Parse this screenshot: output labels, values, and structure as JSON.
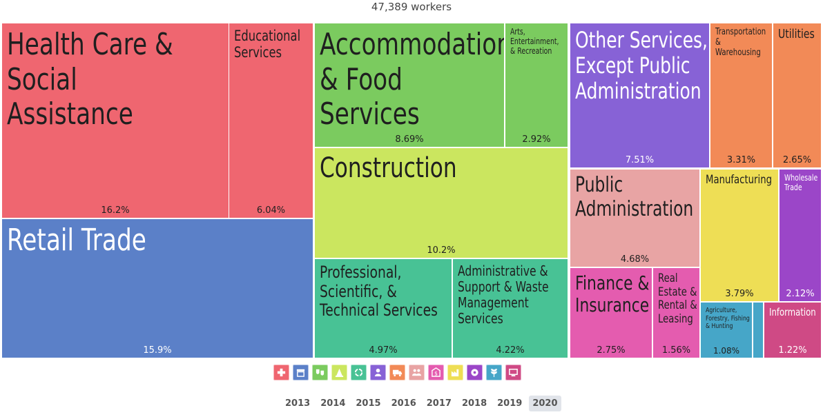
{
  "subtitle": "47,389 workers",
  "chart_data": {
    "type": "treemap",
    "total_label": "47,389 workers",
    "items": [
      {
        "name": "Health Care & Social Assistance",
        "value": 16.2,
        "label": "16.2%",
        "color": "#ef6670"
      },
      {
        "name": "Educational Services",
        "value": 6.04,
        "label": "6.04%",
        "color": "#ef6670"
      },
      {
        "name": "Retail Trade",
        "value": 15.9,
        "label": "15.9%",
        "color": "#5b80c8"
      },
      {
        "name": "Accommodation & Food Services",
        "value": 8.69,
        "label": "8.69%",
        "color": "#7bcb5f"
      },
      {
        "name": "Arts, Entertainment, & Recreation",
        "value": 2.92,
        "label": "2.92%",
        "color": "#7bcb5f"
      },
      {
        "name": "Construction",
        "value": 10.2,
        "label": "10.2%",
        "color": "#cbe65f"
      },
      {
        "name": "Professional, Scientific, & Technical Services",
        "value": 4.97,
        "label": "4.97%",
        "color": "#48c295"
      },
      {
        "name": "Administrative & Support & Waste Management Services",
        "value": 4.22,
        "label": "4.22%",
        "color": "#48c295"
      },
      {
        "name": "Other Services, Except Public Administration",
        "value": 7.51,
        "label": "7.51%",
        "color": "#8762d6"
      },
      {
        "name": "Transportation & Warehousing",
        "value": 3.31,
        "label": "3.31%",
        "color": "#f28a57"
      },
      {
        "name": "Utilities",
        "value": 2.65,
        "label": "2.65%",
        "color": "#f28a57"
      },
      {
        "name": "Public Administration",
        "value": 4.68,
        "label": "4.68%",
        "color": "#e8a4a4"
      },
      {
        "name": "Manufacturing",
        "value": 3.79,
        "label": "3.79%",
        "color": "#eede55"
      },
      {
        "name": "Wholesale Trade",
        "value": 2.12,
        "label": "2.12%",
        "color": "#9b46c8"
      },
      {
        "name": "Finance & Insurance",
        "value": 2.75,
        "label": "2.75%",
        "color": "#e45caf"
      },
      {
        "name": "Real Estate & Rental & Leasing",
        "value": 1.56,
        "label": "1.56%",
        "color": "#e45caf"
      },
      {
        "name": "Agriculture, Forestry, Fishing & Hunting",
        "value": 1.08,
        "label": "1.08%",
        "color": "#46a6c8"
      },
      {
        "name": "",
        "value": 0.3,
        "label": "",
        "color": "#46a6c8"
      },
      {
        "name": "Information",
        "value": 1.22,
        "label": "1.22%",
        "color": "#cf4a85"
      }
    ]
  },
  "labels_display": [
    "Health Care & Social\nAssistance",
    "Educational\nServices",
    "Retail Trade",
    "Accommodation\n& Food Services",
    "Arts,\nEntertainment,\n& Recreation",
    "Construction",
    "Professional,\nScientific, &\nTechnical Services",
    "Administrative &\nSupport & Waste\nManagement\nServices",
    "Other Services,\nExcept Public\nAdministration",
    "Transportation\n&\nWarehousing",
    "Utilities",
    "Public\nAdministration",
    "Manufacturing",
    "Wholesale\nTrade",
    "Finance &\nInsurance",
    "Real\nEstate &\nRental &\nLeasing",
    "Agriculture,\nForestry, Fishing\n& Hunting",
    "",
    "Information"
  ],
  "icons": [
    {
      "name": "health-care-icon",
      "color": "#ef6670"
    },
    {
      "name": "retail-icon",
      "color": "#5b80c8"
    },
    {
      "name": "arts-icon",
      "color": "#7bcb5f"
    },
    {
      "name": "construction-icon",
      "color": "#cbe65f"
    },
    {
      "name": "recycling-icon",
      "color": "#48c295"
    },
    {
      "name": "other-services-icon",
      "color": "#8762d6"
    },
    {
      "name": "transportation-icon",
      "color": "#f28a57"
    },
    {
      "name": "public-administration-icon",
      "color": "#e8a4a4"
    },
    {
      "name": "finance-icon",
      "color": "#e45caf"
    },
    {
      "name": "manufacturing-icon",
      "color": "#eede55"
    },
    {
      "name": "wholesale-icon",
      "color": "#9b46c8"
    },
    {
      "name": "agriculture-icon",
      "color": "#46a6c8"
    },
    {
      "name": "information-icon",
      "color": "#cf4a85"
    }
  ],
  "years": [
    "2013",
    "2014",
    "2015",
    "2016",
    "2017",
    "2018",
    "2019",
    "2020"
  ],
  "active_year": "2020"
}
